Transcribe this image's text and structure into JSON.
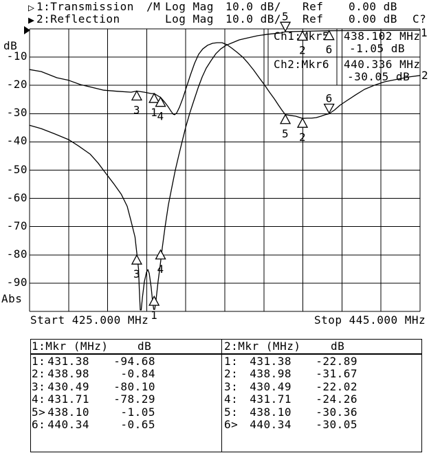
{
  "header": {
    "line1": {
      "arrow": "▷",
      "channel": "1:Transmission",
      "math": "/M",
      "format": "Log Mag",
      "scale": "10.0 dB/",
      "ref_label": "Ref",
      "ref_value": "0.00 dB"
    },
    "line2": {
      "arrow": "▶",
      "channel": "2:Reflection",
      "format": "Log Mag",
      "scale": "10.0 dB/",
      "ref_label": "Ref",
      "ref_value": "0.00 dB",
      "cal": "C?"
    }
  },
  "plot": {
    "y_axis": {
      "unit": "dB",
      "ticks": [
        "-10",
        "-20",
        "-30",
        "-40",
        "-50",
        "-60",
        "-70",
        "-80",
        "-90"
      ],
      "abs_label": "Abs"
    },
    "x_axis": {
      "start_label": "Start 425.000 MHz",
      "stop_label": "Stop 445.000 MHz"
    },
    "trace_end_labels": {
      "trace1": "1",
      "trace2": "2"
    }
  },
  "info_box": {
    "rows": [
      {
        "label": "Ch1:Mkr5",
        "freq": "438.102 MHz",
        "value": "-1.05 dB"
      },
      {
        "label": "Ch2:Mkr6",
        "freq": "440.336 MHz",
        "value": "-30.05 dB"
      }
    ]
  },
  "chart_data": {
    "type": "line",
    "title": "Ch1 Transmission / Ch2 Reflection, Log Mag 10.0 dB/div, Ref 0.00 dB",
    "xlabel": "MHz",
    "ylabel": "dB",
    "x_range": [
      425,
      445
    ],
    "y_range": [
      -100,
      0
    ],
    "x_divisions": 10,
    "y_divisions": 10,
    "grid": true,
    "series": [
      {
        "name": "1: Transmission (dB)",
        "points": [
          [
            425,
            -34.1
          ],
          [
            425.6,
            -35.3
          ],
          [
            426.3,
            -37.2
          ],
          [
            427,
            -39.2
          ],
          [
            427.5,
            -41.4
          ],
          [
            428.1,
            -44.3
          ],
          [
            428.5,
            -47.4
          ],
          [
            428.9,
            -51.1
          ],
          [
            429.3,
            -54.7
          ],
          [
            429.7,
            -58.6
          ],
          [
            430,
            -62.8
          ],
          [
            430.2,
            -68.1
          ],
          [
            430.4,
            -73.7
          ],
          [
            430.5,
            -79.8
          ],
          [
            430.58,
            -85
          ],
          [
            430.62,
            -92
          ],
          [
            430.67,
            -99.5
          ],
          [
            430.72,
            -99.5
          ],
          [
            430.78,
            -95
          ],
          [
            430.88,
            -89.5
          ],
          [
            430.99,
            -86.1
          ],
          [
            431.06,
            -85.2
          ],
          [
            431.13,
            -86.6
          ],
          [
            431.23,
            -91.5
          ],
          [
            431.3,
            -96.4
          ],
          [
            431.36,
            -99.3
          ],
          [
            431.41,
            -99.3
          ],
          [
            431.48,
            -95.9
          ],
          [
            431.58,
            -89.5
          ],
          [
            431.69,
            -83.7
          ],
          [
            431.8,
            -77.4
          ],
          [
            431.94,
            -70.1
          ],
          [
            432.11,
            -62.3
          ],
          [
            432.29,
            -56
          ],
          [
            432.46,
            -50.1
          ],
          [
            432.64,
            -44.8
          ],
          [
            432.82,
            -39.7
          ],
          [
            432.99,
            -35
          ],
          [
            433.2,
            -29.9
          ],
          [
            433.42,
            -25.3
          ],
          [
            433.63,
            -20.9
          ],
          [
            433.84,
            -17
          ],
          [
            434.05,
            -13.9
          ],
          [
            434.3,
            -11.2
          ],
          [
            434.54,
            -8.8
          ],
          [
            434.79,
            -7.1
          ],
          [
            435.07,
            -5.8
          ],
          [
            435.39,
            -4.9
          ],
          [
            435.74,
            -3.9
          ],
          [
            436.16,
            -3.2
          ],
          [
            436.69,
            -2.4
          ],
          [
            437.2,
            -1.9
          ],
          [
            437.9,
            -1.4
          ],
          [
            438.1,
            -1.05
          ],
          [
            438.98,
            -0.84
          ],
          [
            440.34,
            -0.65
          ],
          [
            442.5,
            -0.55
          ],
          [
            445,
            -0.5
          ]
        ]
      },
      {
        "name": "2: Reflection (dB)",
        "points": [
          [
            425,
            -14.4
          ],
          [
            425.6,
            -15.1
          ],
          [
            426.4,
            -17.3
          ],
          [
            427,
            -18.2
          ],
          [
            427.6,
            -19.7
          ],
          [
            428.2,
            -20.7
          ],
          [
            428.8,
            -21.7
          ],
          [
            429.5,
            -22.1
          ],
          [
            430.2,
            -22.4
          ],
          [
            430.49,
            -22.02
          ],
          [
            430.88,
            -22.4
          ],
          [
            431.23,
            -22.9
          ],
          [
            431.38,
            -22.89
          ],
          [
            431.55,
            -23.6
          ],
          [
            431.71,
            -24.26
          ],
          [
            431.93,
            -26
          ],
          [
            432.11,
            -27.7
          ],
          [
            432.25,
            -29.2
          ],
          [
            432.36,
            -30.2
          ],
          [
            432.43,
            -30.4
          ],
          [
            432.54,
            -29.7
          ],
          [
            432.68,
            -27.7
          ],
          [
            432.85,
            -24.6
          ],
          [
            433.03,
            -20.7
          ],
          [
            433.24,
            -16.3
          ],
          [
            433.45,
            -12.2
          ],
          [
            433.66,
            -9
          ],
          [
            433.87,
            -7.1
          ],
          [
            434.12,
            -5.8
          ],
          [
            434.37,
            -5.1
          ],
          [
            434.61,
            -4.9
          ],
          [
            434.86,
            -4.9
          ],
          [
            435.11,
            -5.6
          ],
          [
            435.35,
            -6.8
          ],
          [
            435.63,
            -8.3
          ],
          [
            435.92,
            -10
          ],
          [
            436.2,
            -12.2
          ],
          [
            436.48,
            -14.6
          ],
          [
            436.76,
            -17.3
          ],
          [
            437.04,
            -19.9
          ],
          [
            437.29,
            -22.4
          ],
          [
            437.54,
            -24.8
          ],
          [
            437.75,
            -27
          ],
          [
            437.92,
            -28.7
          ],
          [
            438.1,
            -30.36
          ],
          [
            438.42,
            -30.7
          ],
          [
            438.63,
            -30.9
          ],
          [
            438.98,
            -31.67
          ],
          [
            439.23,
            -31.6
          ],
          [
            439.44,
            -31.6
          ],
          [
            439.68,
            -31.4
          ],
          [
            439.93,
            -30.9
          ],
          [
            440.14,
            -30.4
          ],
          [
            440.34,
            -30.05
          ],
          [
            440.62,
            -28.7
          ],
          [
            440.9,
            -27
          ],
          [
            441.27,
            -25.3
          ],
          [
            441.69,
            -23.4
          ],
          [
            442.15,
            -21.4
          ],
          [
            442.68,
            -19.9
          ],
          [
            443.2,
            -18.7
          ],
          [
            443.84,
            -17.8
          ],
          [
            444.44,
            -17
          ],
          [
            445,
            -16.5
          ]
        ]
      }
    ],
    "markers": {
      "ch1": [
        {
          "n": "1",
          "f": 431.38,
          "db": -94.68,
          "active": false
        },
        {
          "n": "2",
          "f": 438.98,
          "db": -0.84,
          "active": false
        },
        {
          "n": "3",
          "f": 430.49,
          "db": -80.1,
          "active": false
        },
        {
          "n": "4",
          "f": 431.71,
          "db": -78.29,
          "active": false
        },
        {
          "n": "5",
          "f": 438.1,
          "db": -1.05,
          "active": true
        },
        {
          "n": "6",
          "f": 440.34,
          "db": -0.65,
          "active": false
        }
      ],
      "ch2": [
        {
          "n": "1",
          "f": 431.38,
          "db": -22.89,
          "active": false
        },
        {
          "n": "2",
          "f": 438.98,
          "db": -31.67,
          "active": false
        },
        {
          "n": "3",
          "f": 430.49,
          "db": -22.02,
          "active": false
        },
        {
          "n": "4",
          "f": 431.71,
          "db": -24.26,
          "active": false
        },
        {
          "n": "5",
          "f": 438.1,
          "db": -30.36,
          "active": false
        },
        {
          "n": "6",
          "f": 440.34,
          "db": -30.05,
          "active": true
        }
      ]
    }
  },
  "marker_tables": [
    {
      "title": "1:Mkr (MHz)",
      "unit": "dB",
      "rows": [
        {
          "m": "1:",
          "f": "431.38",
          "v": "-94.68"
        },
        {
          "m": "2:",
          "f": "438.98",
          "v": "-0.84"
        },
        {
          "m": "3:",
          "f": "430.49",
          "v": "-80.10"
        },
        {
          "m": "4:",
          "f": "431.71",
          "v": "-78.29"
        },
        {
          "m": "5>",
          "f": "438.10",
          "v": "-1.05"
        },
        {
          "m": "6:",
          "f": "440.34",
          "v": "-0.65"
        }
      ]
    },
    {
      "title": "2:Mkr (MHz)",
      "unit": "dB",
      "rows": [
        {
          "m": "1:",
          "f": "431.38",
          "v": "-22.89"
        },
        {
          "m": "2:",
          "f": "438.98",
          "v": "-31.67"
        },
        {
          "m": "3:",
          "f": "430.49",
          "v": "-22.02"
        },
        {
          "m": "4:",
          "f": "431.71",
          "v": "-24.26"
        },
        {
          "m": "5:",
          "f": "438.10",
          "v": "-30.36"
        },
        {
          "m": "6>",
          "f": "440.34",
          "v": "-30.05"
        }
      ]
    }
  ]
}
